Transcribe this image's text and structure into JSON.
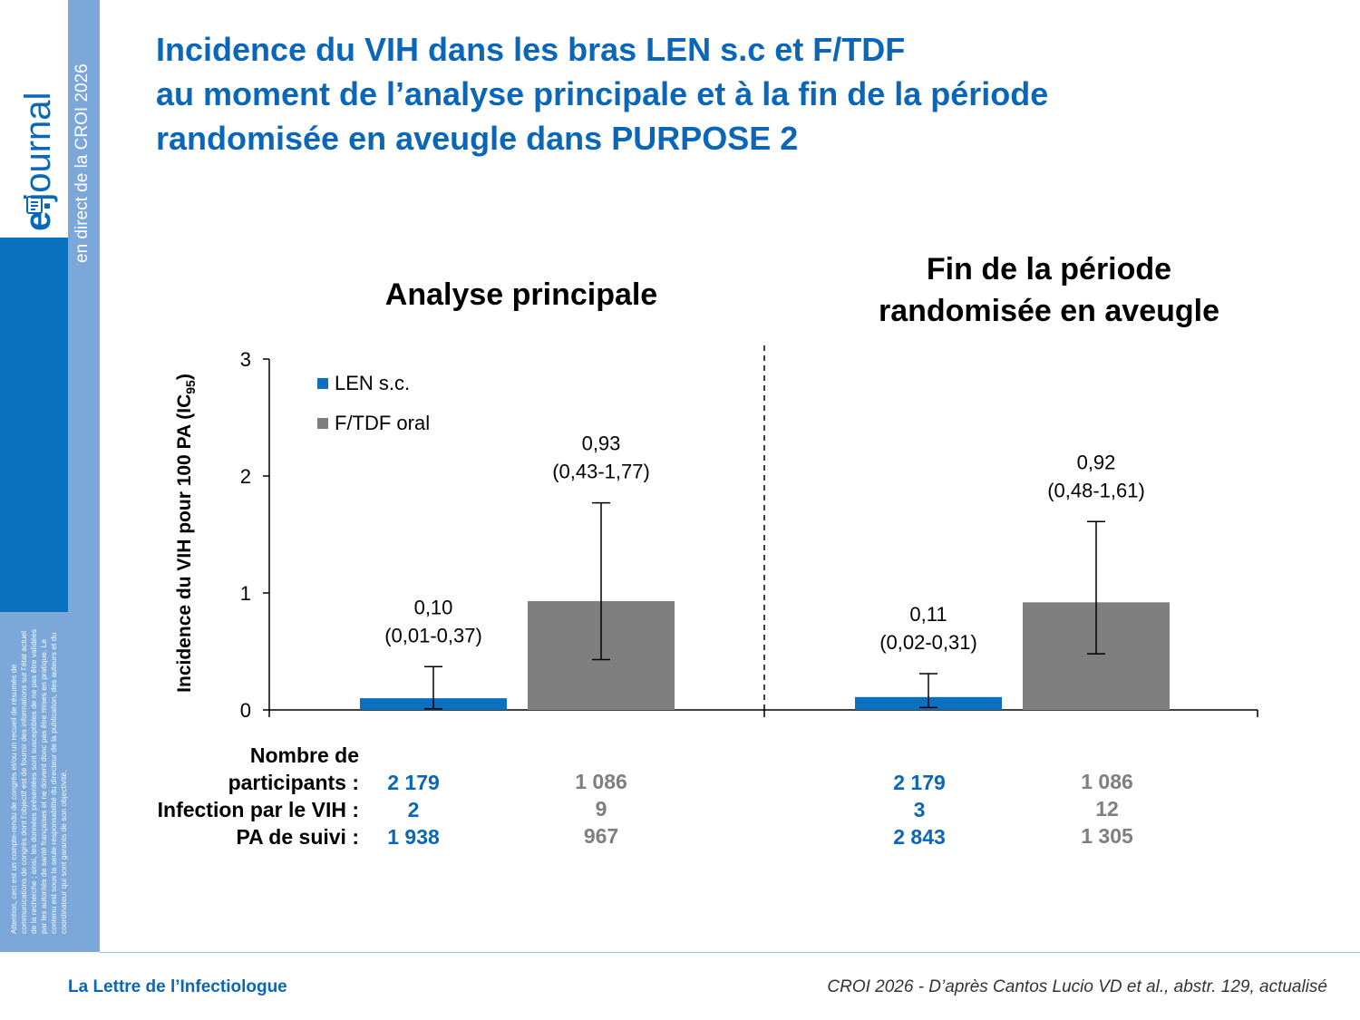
{
  "title_lines": [
    "Incidence du VIH dans les bras LEN s.c et F/TDF",
    "au moment de l’analyse principale et à la fin de la période",
    "randomisée en aveugle dans PURPOSE 2"
  ],
  "sidebar": {
    "brand_e": "e.",
    "brand_rest": "journal",
    "subtitle": "en direct de la CROI 2026",
    "disclaimer": "Attention, ceci est un compte-rendu de congrès et/ou un recueil de résumés de communications de congrès dont l’objectif est de fournir des informations sur l’état actuel de la recherche ; ainsi, les données présentées sont susceptibles de ne pas être validées par les autorités de santé françaises et ne doivent donc pas être mises en pratique. Le contenu est sous la seule responsabilité du directeur de la publication, des auteurs et du coordinateur qui sont garants de son objectivité."
  },
  "chart_data": {
    "type": "bar",
    "groups": [
      "Analyse principale",
      "Fin de la période randomisée en aveugle"
    ],
    "group_title_lines": [
      [
        "Analyse principale"
      ],
      [
        "Fin de la période",
        "randomisée en aveugle"
      ]
    ],
    "ylabel_main": "Incidence du VIH pour 100 PA (IC",
    "ylabel_sub": "95",
    "ylabel_end": ")",
    "ylim": [
      0,
      3
    ],
    "yticks": [
      "0",
      "1",
      "2",
      "3"
    ],
    "series": [
      {
        "name": "LEN s.c.",
        "color": "#0a70c0",
        "values": [
          0.1,
          0.11
        ],
        "ci_low": [
          0.01,
          0.02
        ],
        "ci_high": [
          0.37,
          0.31
        ],
        "value_labels": [
          "0,10",
          "0,11"
        ],
        "ci_labels": [
          "(0,01-0,37)",
          "(0,02-0,31)"
        ]
      },
      {
        "name": "F/TDF oral",
        "color": "#7f7f7f",
        "values": [
          0.93,
          0.92
        ],
        "ci_low": [
          0.43,
          0.48
        ],
        "ci_high": [
          1.77,
          1.61
        ],
        "value_labels": [
          "0,93",
          "0,92"
        ],
        "ci_labels": [
          "(0,43-1,77)",
          "(0,48-1,61)"
        ]
      }
    ]
  },
  "table": {
    "row_labels": [
      "Nombre de",
      "participants :",
      "Infection par le VIH :",
      "PA de suivi :"
    ],
    "columns": [
      {
        "color": "blue",
        "values": [
          "2 179",
          "2",
          "1 938"
        ]
      },
      {
        "color": "grey",
        "values": [
          "1 086",
          "9",
          "967"
        ]
      },
      {
        "color": "blue",
        "values": [
          "2 179",
          "3",
          "2 843"
        ]
      },
      {
        "color": "grey",
        "values": [
          "1 086",
          "12",
          "1 305"
        ]
      }
    ]
  },
  "footer": {
    "left": "La Lettre de l’Infectiologue",
    "right": "CROI 2026 - D’après Cantos Lucio VD et al., abstr. 129, actualisé"
  }
}
